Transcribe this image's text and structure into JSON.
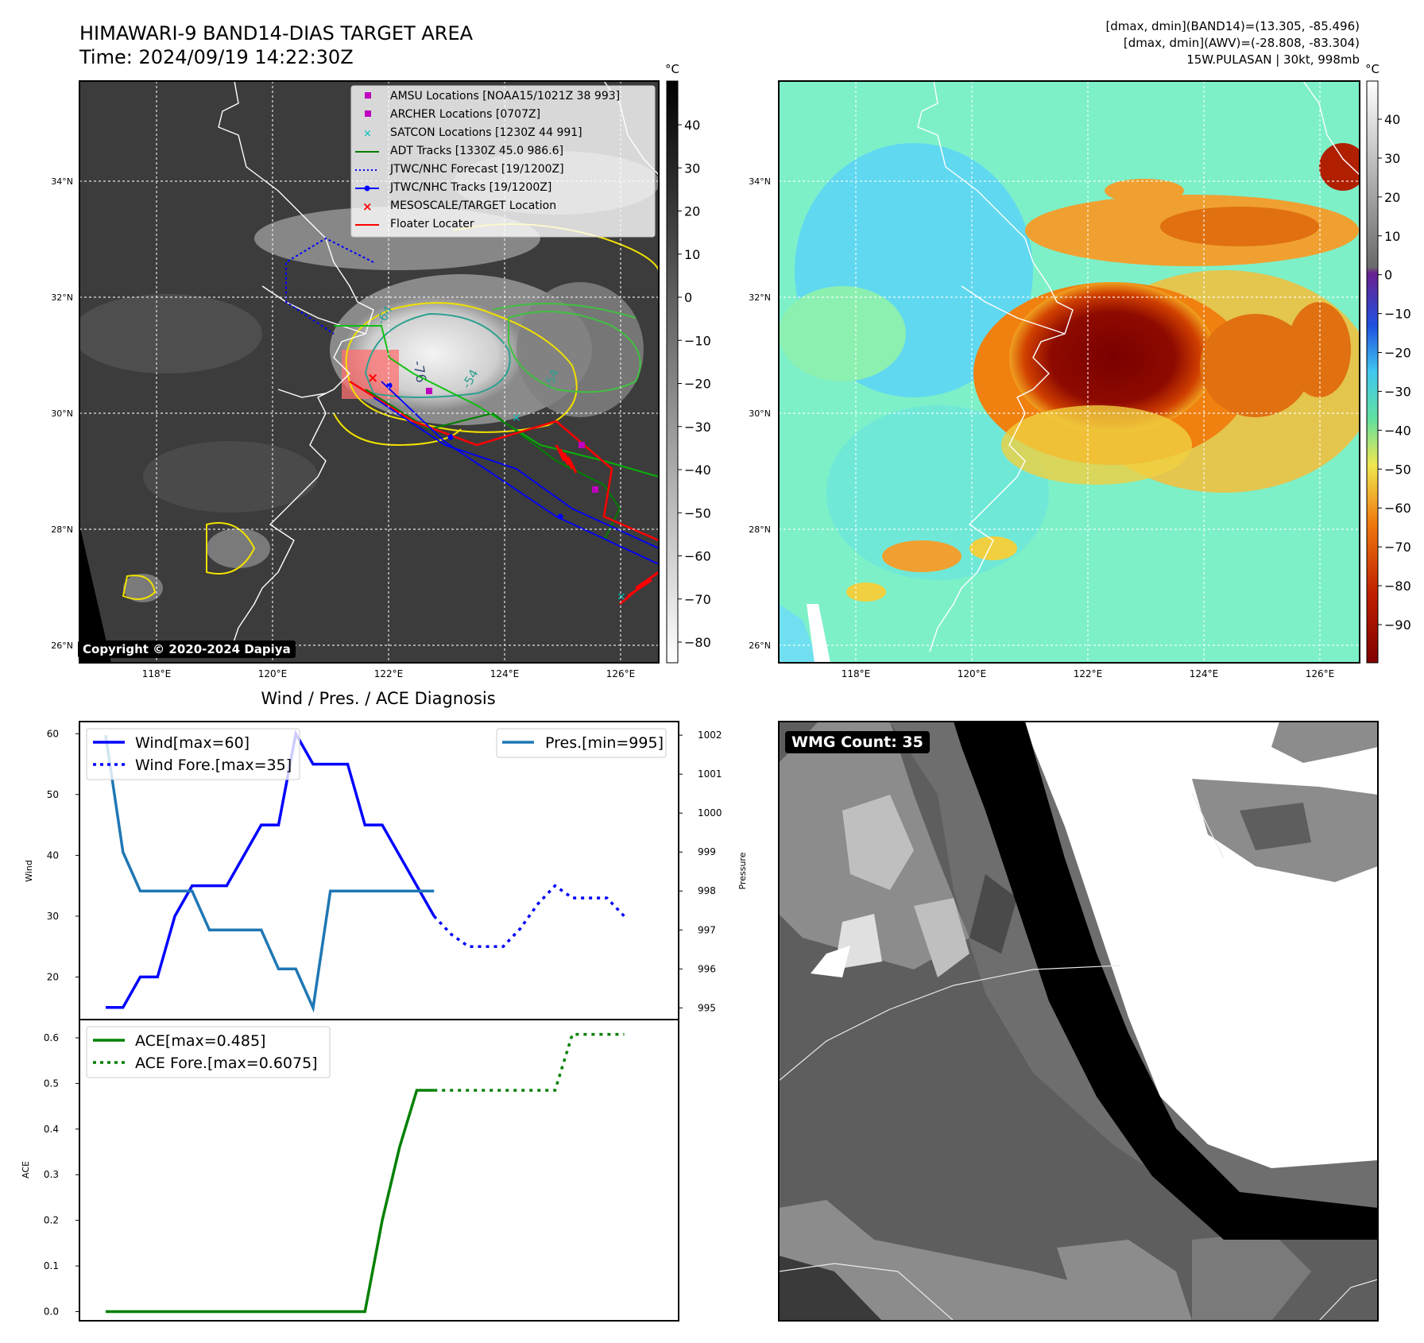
{
  "header": {
    "title": "HIMAWARI-9 BAND14-DIAS TARGET AREA",
    "time": "Time: 2024/09/19 14:22:30Z",
    "info_line1": "[dmax, dmin](BAND14)=(13.305, -85.496)",
    "info_line2": "[dmax, dmin](AWV)=(-28.808, -83.304)",
    "info_line3": "15W.PULASAN | 30kt, 998mb"
  },
  "map_axes": {
    "lat_labels": [
      "34°N",
      "32°N",
      "30°N",
      "28°N",
      "26°N"
    ],
    "lon_labels": [
      "118°E",
      "120°E",
      "122°E",
      "124°E",
      "126°E"
    ]
  },
  "legend": {
    "items": [
      "AMSU Locations [NOAA15/1021Z 38 993]",
      "ARCHER Locations [0707Z]",
      "SATCON Locations [1230Z 44 991]",
      "ADT Tracks [1330Z 45.0 986.6]",
      "JTWC/NHC Forecast [19/1200Z]",
      "JTWC/NHC Tracks [19/1200Z]",
      "MESOSCALE/TARGET Location",
      "Floater Locater"
    ]
  },
  "contour_labels": [
    "-64",
    "-76",
    "-54",
    "-54"
  ],
  "colorbar_gray": {
    "unit": "°C",
    "ticks": [
      "40",
      "30",
      "20",
      "10",
      "0",
      "−10",
      "−20",
      "−30",
      "−40",
      "−50",
      "−60",
      "−70",
      "−80"
    ]
  },
  "colorbar_color": {
    "unit": "°C",
    "ticks": [
      "40",
      "30",
      "20",
      "10",
      "0",
      "−10",
      "−20",
      "−30",
      "−40",
      "−50",
      "−60",
      "−70",
      "−80",
      "−90"
    ]
  },
  "copyright": "Copyright © 2020-2024 Dapiya",
  "wmg_count": "WMG Count: 35",
  "colors": {
    "wind": "#0000ff",
    "pres": "#1f77b4",
    "ace": "#008000",
    "amsu": "#bf00bf",
    "satcon": "#00bfbf",
    "adt": "#008000",
    "floater": "#ff0000",
    "target": "#ff0000"
  },
  "chart_data": [
    {
      "type": "line",
      "title": "Wind / Pres. / ACE Diagnosis",
      "ylabel": "Wind",
      "ylabel_right": "Pressure",
      "ylim": [
        13,
        62
      ],
      "ylim_right": [
        994.7,
        1002.35
      ],
      "yticks": [
        "20",
        "30",
        "40",
        "50",
        "60"
      ],
      "yticks_right": [
        "995",
        "996",
        "997",
        "998",
        "999",
        "1000",
        "1001",
        "1002"
      ],
      "legend_left": [
        "Wind[max=60]",
        "Wind Fore.[max=35]"
      ],
      "legend_right": [
        "Pres.[min=995]"
      ],
      "series": [
        {
          "name": "Wind",
          "axis": "left",
          "style": "solid",
          "x": [
            0,
            1,
            2,
            3,
            4,
            5,
            6,
            7,
            8,
            9,
            10,
            11,
            12,
            13,
            14,
            15,
            16,
            17,
            18,
            19
          ],
          "values": [
            15,
            15,
            20,
            20,
            30,
            35,
            35,
            35,
            40,
            45,
            45,
            60,
            55,
            55,
            55,
            45,
            45,
            40,
            35,
            30
          ]
        },
        {
          "name": "Wind Fore.",
          "axis": "left",
          "style": "dotted",
          "x": [
            19,
            20,
            21,
            22,
            23,
            24,
            25,
            26,
            27,
            28,
            29,
            30
          ],
          "values": [
            30,
            27,
            25,
            25,
            25,
            28,
            32,
            35,
            33,
            33,
            33,
            30
          ]
        },
        {
          "name": "Pres.",
          "axis": "right",
          "style": "solid",
          "x": [
            0,
            1,
            2,
            3,
            4,
            5,
            6,
            7,
            8,
            9,
            10,
            11,
            12,
            13,
            14,
            15,
            16,
            17,
            18,
            19
          ],
          "values": [
            1002,
            999,
            998,
            998,
            998,
            998,
            997,
            997,
            997,
            997,
            996,
            996,
            995,
            998,
            998,
            998,
            998,
            998,
            998,
            998
          ]
        }
      ]
    },
    {
      "type": "line",
      "ylabel": "ACE",
      "ylim": [
        -0.02,
        0.64
      ],
      "yticks": [
        "0.0",
        "0.1",
        "0.2",
        "0.3",
        "0.4",
        "0.5",
        "0.6"
      ],
      "legend": [
        "ACE[max=0.485]",
        "ACE Fore.[max=0.6075]"
      ],
      "series": [
        {
          "name": "ACE",
          "style": "solid",
          "x": [
            0,
            15,
            16,
            17,
            18,
            19
          ],
          "values": [
            0.0,
            0.0,
            0.2,
            0.36,
            0.485,
            0.485
          ]
        },
        {
          "name": "ACE Fore.",
          "style": "dotted",
          "x": [
            19,
            26,
            27,
            28,
            30
          ],
          "values": [
            0.485,
            0.485,
            0.6075,
            0.6075,
            0.6075
          ]
        }
      ]
    }
  ]
}
